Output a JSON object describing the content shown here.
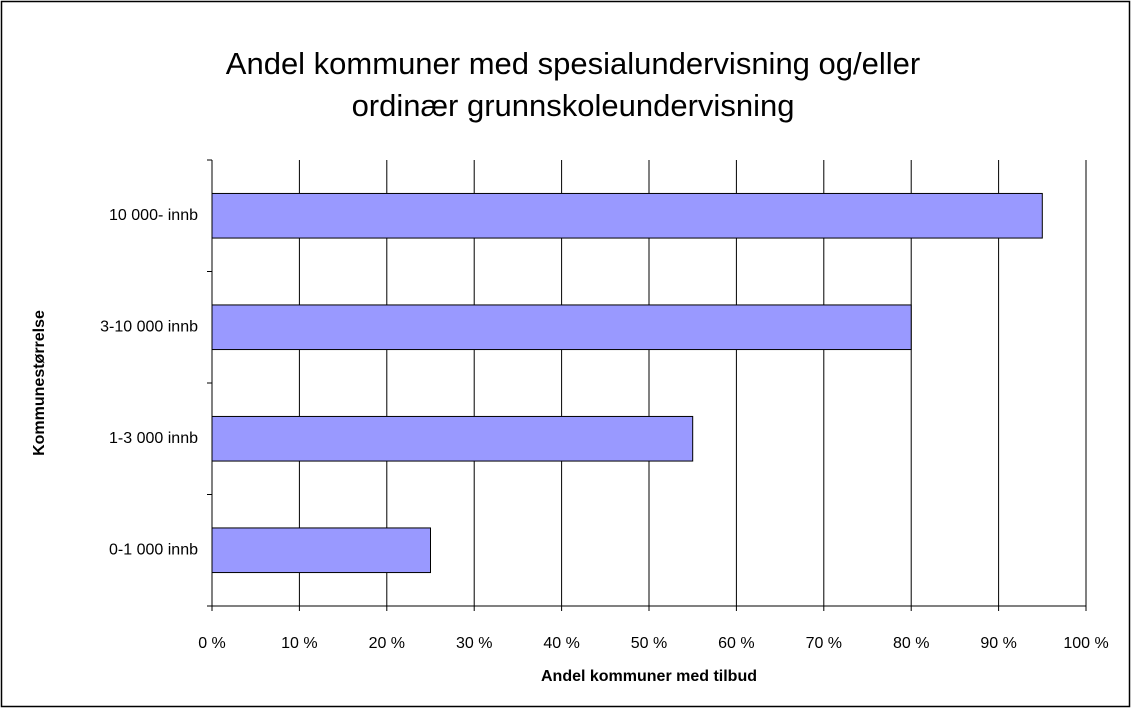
{
  "chart_data": {
    "type": "hbar",
    "title": [
      "Andel kommuner med spesialundervisning og/eller",
      "ordinær grunnskoleundervisning"
    ],
    "x_label": "Andel kommuner med tilbud",
    "y_label": "Kommunestørrelse",
    "categories": [
      "0-1 000 innb",
      "1-3 000 innb",
      "3-10 000 innb",
      "10 000- innb"
    ],
    "values": [
      25,
      55,
      80,
      95
    ],
    "color": "#9999ff",
    "xlim": [
      0,
      100
    ],
    "xticks": [
      {
        "value": 0,
        "label": "0 %"
      },
      {
        "value": 10,
        "label": "10 %"
      },
      {
        "value": 20,
        "label": "20 %"
      },
      {
        "value": 30,
        "label": "30 %"
      },
      {
        "value": 40,
        "label": "40 %"
      },
      {
        "value": 50,
        "label": "50 %"
      },
      {
        "value": 60,
        "label": "60 %"
      },
      {
        "value": 70,
        "label": "70 %"
      },
      {
        "value": 80,
        "label": "80 %"
      },
      {
        "value": 90,
        "label": "90 %"
      },
      {
        "value": 100,
        "label": "100 %"
      }
    ],
    "grid": true
  }
}
